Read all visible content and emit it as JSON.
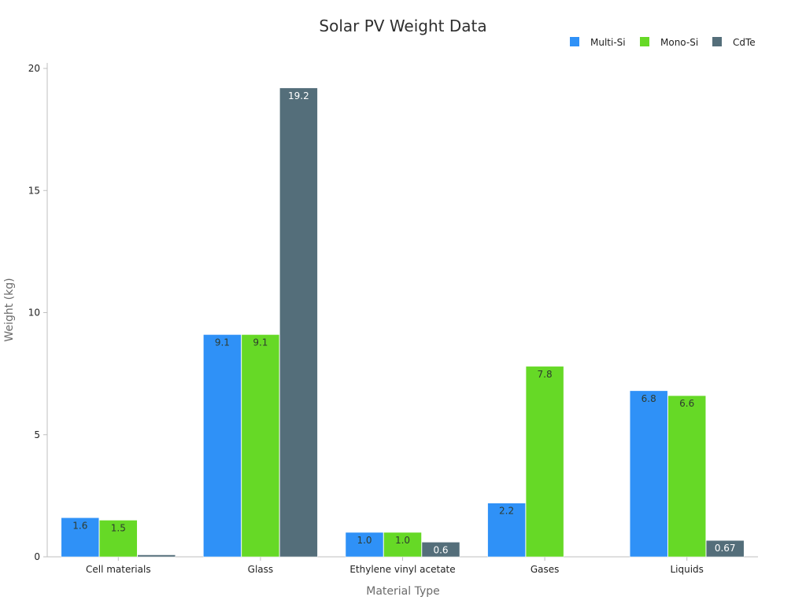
{
  "chart_data": {
    "type": "bar",
    "title": "Solar PV Weight Data",
    "xlabel": "Material Type",
    "ylabel": "Weight (kg)",
    "categories": [
      "Cell materials",
      "Glass",
      "Ethylene vinyl acetate",
      "Gases",
      "Liquids"
    ],
    "series": [
      {
        "name": "Multi-Si",
        "color": "#2f91f7",
        "values": [
          1.6,
          9.1,
          1.0,
          2.2,
          6.8
        ],
        "labels": [
          "1.6",
          "9.1",
          "1.0",
          "2.2",
          "6.8"
        ]
      },
      {
        "name": "Mono-Si",
        "color": "#66d926",
        "values": [
          1.5,
          9.1,
          1.0,
          7.8,
          6.6
        ],
        "labels": [
          "1.5",
          "9.1",
          "1.0",
          "7.8",
          "6.6"
        ]
      },
      {
        "name": "CdTe",
        "color": "#546e7a",
        "values": [
          0.08,
          19.2,
          0.6,
          0,
          0.67
        ],
        "labels": [
          "",
          "19.2",
          "0.6",
          "",
          "0.67"
        ]
      }
    ],
    "ylim": [
      0,
      20
    ],
    "yticks": [
      "0",
      "5",
      "10",
      "15",
      "20"
    ],
    "legend_position": "top-right",
    "grid": false
  }
}
